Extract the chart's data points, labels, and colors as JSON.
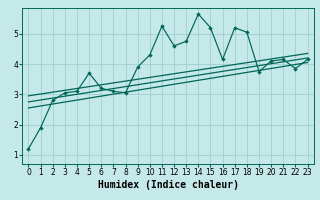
{
  "xlabel": "Humidex (Indice chaleur)",
  "bg_color": "#c5e8e8",
  "grid_color": "#9fcece",
  "line_color": "#006655",
  "xlim": [
    -0.5,
    23.5
  ],
  "ylim": [
    0.7,
    5.85
  ],
  "xticks": [
    0,
    1,
    2,
    3,
    4,
    5,
    6,
    7,
    8,
    9,
    10,
    11,
    12,
    13,
    14,
    15,
    16,
    17,
    18,
    19,
    20,
    21,
    22,
    23
  ],
  "yticks": [
    1,
    2,
    3,
    4,
    5
  ],
  "scatter_x": [
    0,
    1,
    2,
    3,
    4,
    5,
    6,
    7,
    8,
    9,
    10,
    11,
    12,
    13,
    14,
    15,
    16,
    17,
    18,
    19,
    20,
    21,
    22,
    23
  ],
  "scatter_y": [
    1.2,
    1.9,
    2.8,
    3.05,
    3.1,
    3.7,
    3.2,
    3.1,
    3.05,
    3.9,
    4.3,
    5.25,
    4.6,
    4.75,
    5.65,
    5.2,
    4.15,
    5.2,
    5.05,
    3.75,
    4.1,
    4.15,
    3.85,
    4.15
  ],
  "reg_lines": [
    {
      "x": [
        0,
        23
      ],
      "y": [
        2.55,
        4.05
      ]
    },
    {
      "x": [
        0,
        23
      ],
      "y": [
        2.75,
        4.2
      ]
    },
    {
      "x": [
        0,
        23
      ],
      "y": [
        2.95,
        4.35
      ]
    }
  ],
  "xlabel_fontsize": 7,
  "tick_fontsize": 5.5
}
